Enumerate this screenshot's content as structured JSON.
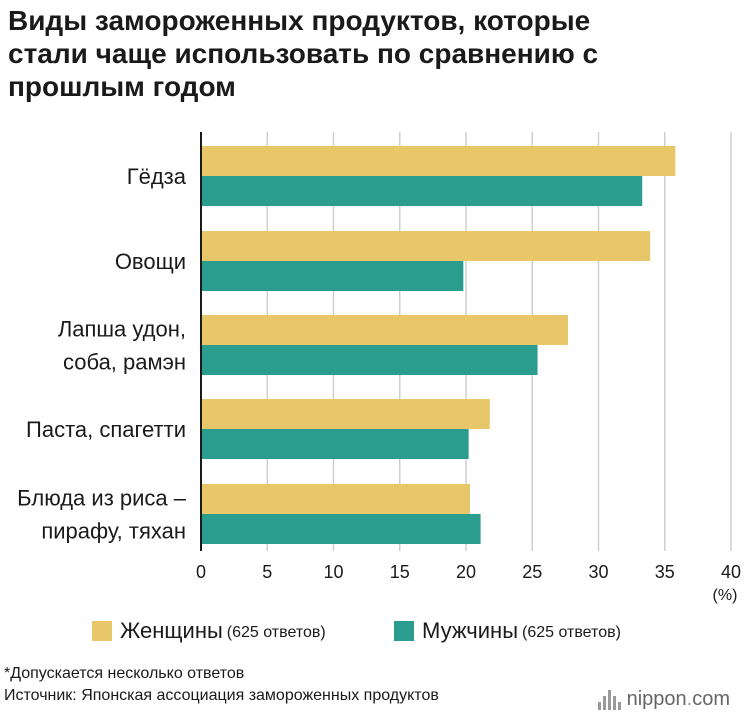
{
  "title_lines": [
    "Виды замороженных продуктов, которые",
    "стали чаще использовать по сравнению с",
    "прошлым годом"
  ],
  "chart_data": {
    "type": "bar",
    "orientation": "horizontal",
    "categories": [
      [
        "Гёдза"
      ],
      [
        "Овощи"
      ],
      [
        "Лапша удон,",
        "соба, рамэн"
      ],
      [
        "Паста, спагетти"
      ],
      [
        "Блюда из риса –",
        "пирафу, тяхан"
      ]
    ],
    "series": [
      {
        "name": "Женщины",
        "count_label": "(625 ответов)",
        "color": "#e8c76a",
        "values": [
          35.8,
          33.9,
          27.7,
          21.8,
          20.3
        ]
      },
      {
        "name": "Мужчины",
        "count_label": "(625 ответов)",
        "color": "#2a9d8f",
        "values": [
          33.3,
          19.8,
          25.4,
          20.2,
          21.1
        ]
      }
    ],
    "xlim": [
      0,
      40
    ],
    "xticks": [
      "0",
      "5",
      "10",
      "15",
      "20",
      "25",
      "30",
      "35",
      "40"
    ],
    "unit_label": "(%)",
    "grid": true,
    "legend_position": "bottom"
  },
  "footnotes": {
    "note": "*Допускается несколько ответов",
    "source": "Источник: Японская ассоциация замороженных продуктов"
  },
  "logo": {
    "name": "nippon",
    "dot": ".",
    "tld": "com"
  }
}
